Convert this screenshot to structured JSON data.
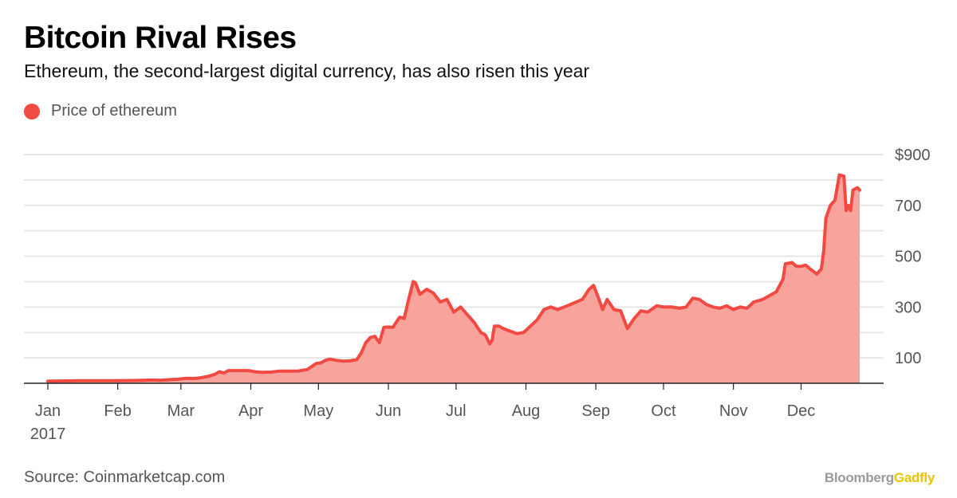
{
  "header": {
    "title": "Bitcoin Rival Rises",
    "subtitle": "Ethereum, the second-largest digital currency, has also risen this year"
  },
  "legend": {
    "label": "Price of ethereum"
  },
  "footer": {
    "source": "Source: Coinmarketcap.com",
    "brand_part1": "Bloomberg",
    "brand_part2": "Gadfly"
  },
  "colors": {
    "line": "#f04a42",
    "fill": "#f8a39c",
    "grid": "#e6e6e6",
    "axis": "#222222",
    "brand_gray": "#9a9a9a",
    "brand_yellow": "#e8c400"
  },
  "chart_data": {
    "type": "area",
    "title": "Bitcoin Rival Rises",
    "subtitle": "Ethereum, the second-largest digital currency, has also risen this year",
    "xlabel": "",
    "ylabel": "",
    "ylim": [
      0,
      900
    ],
    "y_ticks": [
      {
        "value": 900,
        "label": "$900"
      },
      {
        "value": 700,
        "label": "700"
      },
      {
        "value": 500,
        "label": "500"
      },
      {
        "value": 300,
        "label": "300"
      },
      {
        "value": 100,
        "label": "100"
      }
    ],
    "y_gridlines": [
      100,
      200,
      300,
      400,
      500,
      600,
      700,
      800,
      900
    ],
    "x_ticks": [
      {
        "label": "Jan",
        "sublabel": "2017",
        "date": "2017-01-01"
      },
      {
        "label": "Feb",
        "date": "2017-02-01"
      },
      {
        "label": "Mar",
        "date": "2017-03-01"
      },
      {
        "label": "Apr",
        "date": "2017-04-01"
      },
      {
        "label": "May",
        "date": "2017-05-01"
      },
      {
        "label": "Jun",
        "date": "2017-06-01"
      },
      {
        "label": "Jul",
        "date": "2017-07-01"
      },
      {
        "label": "Aug",
        "date": "2017-08-01"
      },
      {
        "label": "Sep",
        "date": "2017-09-01"
      },
      {
        "label": "Oct",
        "date": "2017-10-01"
      },
      {
        "label": "Nov",
        "date": "2017-11-01"
      },
      {
        "label": "Dec",
        "date": "2017-12-01"
      }
    ],
    "grid": true,
    "legend_position": "top-left",
    "series": [
      {
        "name": "Price of ethereum",
        "points": [
          [
            "2017-01-01",
            8
          ],
          [
            "2017-01-15",
            10
          ],
          [
            "2017-01-31",
            10
          ],
          [
            "2017-02-08",
            11
          ],
          [
            "2017-02-12",
            12
          ],
          [
            "2017-02-16",
            13
          ],
          [
            "2017-02-20",
            12
          ],
          [
            "2017-02-25",
            15
          ],
          [
            "2017-02-28",
            16
          ],
          [
            "2017-03-03",
            19
          ],
          [
            "2017-03-08",
            19
          ],
          [
            "2017-03-13",
            27
          ],
          [
            "2017-03-16",
            35
          ],
          [
            "2017-03-18",
            45
          ],
          [
            "2017-03-20",
            40
          ],
          [
            "2017-03-22",
            50
          ],
          [
            "2017-03-25",
            50
          ],
          [
            "2017-03-28",
            50
          ],
          [
            "2017-03-31",
            50
          ],
          [
            "2017-04-03",
            45
          ],
          [
            "2017-04-06",
            43
          ],
          [
            "2017-04-10",
            44
          ],
          [
            "2017-04-14",
            48
          ],
          [
            "2017-04-18",
            48
          ],
          [
            "2017-04-22",
            48
          ],
          [
            "2017-04-26",
            54
          ],
          [
            "2017-04-30",
            78
          ],
          [
            "2017-05-02",
            80
          ],
          [
            "2017-05-04",
            90
          ],
          [
            "2017-05-06",
            95
          ],
          [
            "2017-05-09",
            90
          ],
          [
            "2017-05-12",
            87
          ],
          [
            "2017-05-15",
            88
          ],
          [
            "2017-05-18",
            93
          ],
          [
            "2017-05-20",
            120
          ],
          [
            "2017-05-22",
            160
          ],
          [
            "2017-05-24",
            180
          ],
          [
            "2017-05-26",
            185
          ],
          [
            "2017-05-28",
            160
          ],
          [
            "2017-05-30",
            220
          ],
          [
            "2017-06-01",
            221
          ],
          [
            "2017-06-03",
            220
          ],
          [
            "2017-06-06",
            260
          ],
          [
            "2017-06-08",
            255
          ],
          [
            "2017-06-10",
            330
          ],
          [
            "2017-06-12",
            400
          ],
          [
            "2017-06-13",
            395
          ],
          [
            "2017-06-15",
            350
          ],
          [
            "2017-06-18",
            370
          ],
          [
            "2017-06-21",
            355
          ],
          [
            "2017-06-24",
            320
          ],
          [
            "2017-06-27",
            330
          ],
          [
            "2017-06-30",
            280
          ],
          [
            "2017-07-03",
            300
          ],
          [
            "2017-07-06",
            270
          ],
          [
            "2017-07-09",
            240
          ],
          [
            "2017-07-12",
            200
          ],
          [
            "2017-07-14",
            190
          ],
          [
            "2017-07-16",
            155
          ],
          [
            "2017-07-17",
            170
          ],
          [
            "2017-07-18",
            225
          ],
          [
            "2017-07-20",
            225
          ],
          [
            "2017-07-22",
            215
          ],
          [
            "2017-07-25",
            205
          ],
          [
            "2017-07-28",
            195
          ],
          [
            "2017-07-31",
            200
          ],
          [
            "2017-08-03",
            225
          ],
          [
            "2017-08-06",
            250
          ],
          [
            "2017-08-09",
            290
          ],
          [
            "2017-08-12",
            300
          ],
          [
            "2017-08-15",
            290
          ],
          [
            "2017-08-18",
            300
          ],
          [
            "2017-08-22",
            315
          ],
          [
            "2017-08-26",
            330
          ],
          [
            "2017-08-29",
            370
          ],
          [
            "2017-08-31",
            385
          ],
          [
            "2017-09-02",
            340
          ],
          [
            "2017-09-04",
            290
          ],
          [
            "2017-09-06",
            330
          ],
          [
            "2017-09-09",
            290
          ],
          [
            "2017-09-12",
            285
          ],
          [
            "2017-09-15",
            215
          ],
          [
            "2017-09-18",
            255
          ],
          [
            "2017-09-21",
            285
          ],
          [
            "2017-09-24",
            280
          ],
          [
            "2017-09-28",
            305
          ],
          [
            "2017-10-01",
            300
          ],
          [
            "2017-10-05",
            300
          ],
          [
            "2017-10-08",
            295
          ],
          [
            "2017-10-11",
            300
          ],
          [
            "2017-10-14",
            335
          ],
          [
            "2017-10-17",
            330
          ],
          [
            "2017-10-20",
            310
          ],
          [
            "2017-10-23",
            300
          ],
          [
            "2017-10-26",
            295
          ],
          [
            "2017-10-29",
            305
          ],
          [
            "2017-11-01",
            290
          ],
          [
            "2017-11-04",
            300
          ],
          [
            "2017-11-07",
            295
          ],
          [
            "2017-11-10",
            320
          ],
          [
            "2017-11-14",
            330
          ],
          [
            "2017-11-17",
            345
          ],
          [
            "2017-11-20",
            360
          ],
          [
            "2017-11-23",
            410
          ],
          [
            "2017-11-24",
            470
          ],
          [
            "2017-11-27",
            475
          ],
          [
            "2017-11-29",
            460
          ],
          [
            "2017-12-01",
            460
          ],
          [
            "2017-12-03",
            465
          ],
          [
            "2017-12-05",
            450
          ],
          [
            "2017-12-08",
            430
          ],
          [
            "2017-12-10",
            450
          ],
          [
            "2017-12-11",
            520
          ],
          [
            "2017-12-12",
            650
          ],
          [
            "2017-12-14",
            700
          ],
          [
            "2017-12-16",
            720
          ],
          [
            "2017-12-18",
            820
          ],
          [
            "2017-12-20",
            815
          ],
          [
            "2017-12-21",
            680
          ],
          [
            "2017-12-22",
            700
          ],
          [
            "2017-12-23",
            680
          ],
          [
            "2017-12-24",
            760
          ],
          [
            "2017-12-26",
            770
          ],
          [
            "2017-12-27",
            760
          ]
        ]
      }
    ]
  }
}
